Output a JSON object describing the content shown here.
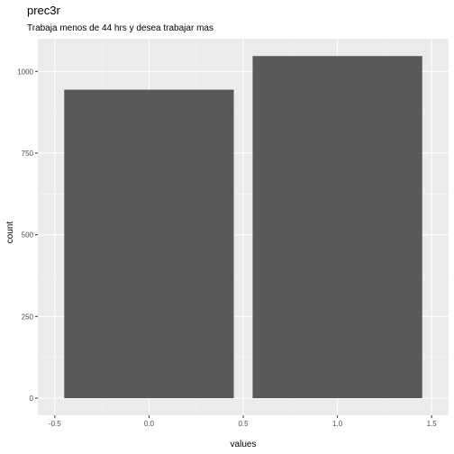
{
  "chart_data": {
    "type": "bar",
    "title": "prec3r",
    "subtitle": "Trabaja menos de 44 hrs y desea trabajar mas",
    "xlabel": "values",
    "ylabel": "count",
    "x": [
      0,
      1
    ],
    "values": [
      944,
      1047
    ],
    "bar_width": 0.9,
    "xlim": [
      -0.5,
      1.5
    ],
    "ylim": [
      0,
      1100
    ],
    "x_ticks": [
      -0.5,
      0.0,
      0.5,
      1.0,
      1.5
    ],
    "x_tick_labels": [
      "-0.5",
      "0.0",
      "0.5",
      "1.0",
      "1.5"
    ],
    "y_ticks": [
      0,
      250,
      500,
      750,
      1000
    ],
    "y_tick_labels": [
      "0",
      "250",
      "500",
      "750",
      "1000"
    ],
    "grid": true,
    "colors": {
      "panel_background": "#ebebeb",
      "grid_major": "#ffffff",
      "grid_minor": "#f5f5f5",
      "bar_fill": "#595959",
      "tick_text": "#4d4d4d",
      "tick_mark": "#333333"
    }
  }
}
